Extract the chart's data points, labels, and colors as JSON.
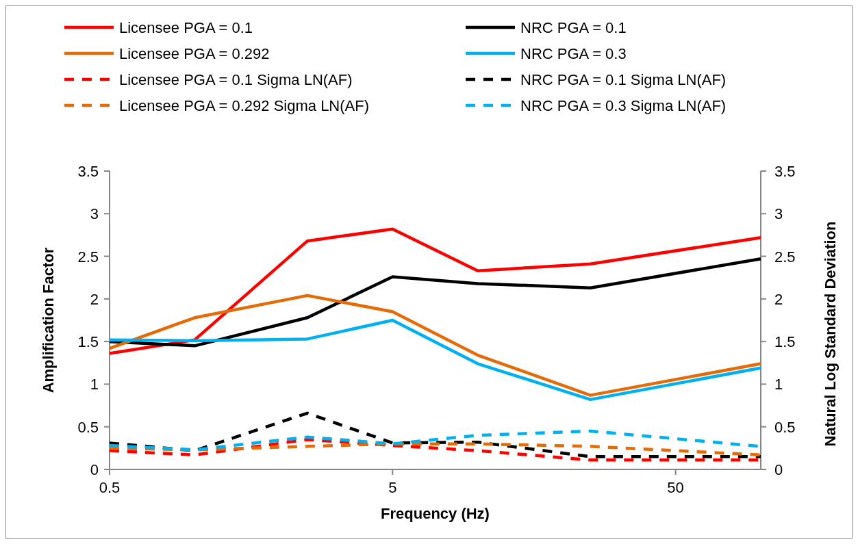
{
  "chart_data": {
    "type": "line",
    "xlabel": "Frequency (Hz)",
    "ylabel": "Amplification Factor",
    "y2label": "Natural Log Standard Deviation",
    "x": [
      0.5,
      1,
      2.5,
      5,
      10,
      25,
      100
    ],
    "log": "x",
    "xlim": [
      0.5,
      100
    ],
    "xticks": [
      0.5,
      5,
      50
    ],
    "ylim": [
      0,
      3.5
    ],
    "yticks": [
      0,
      0.5,
      1,
      1.5,
      2,
      2.5,
      3,
      3.5
    ],
    "y2lim": [
      0,
      3.5
    ],
    "y2ticks": [
      0,
      0.5,
      1,
      1.5,
      2,
      2.5,
      3,
      3.5
    ],
    "grid": false,
    "legend": "top",
    "marker": "none",
    "series": [
      {
        "name": "Licensee PGA = 0.1",
        "color": "#ff0000",
        "line_style": "solid",
        "values": [
          1.36,
          1.52,
          2.68,
          2.82,
          2.33,
          2.41,
          2.72
        ]
      },
      {
        "name": "NRC PGA = 0.1",
        "color": "#000000",
        "line_style": "solid",
        "values": [
          1.5,
          1.45,
          1.78,
          2.26,
          2.18,
          2.13,
          2.47
        ]
      },
      {
        "name": "Licensee PGA = 0.292",
        "color": "#e36c09",
        "line_style": "solid",
        "values": [
          1.42,
          1.78,
          2.04,
          1.85,
          1.34,
          0.87,
          1.24
        ]
      },
      {
        "name": "NRC PGA = 0.3",
        "color": "#00b0f0",
        "line_style": "solid",
        "values": [
          1.52,
          1.51,
          1.53,
          1.75,
          1.24,
          0.82,
          1.19
        ]
      },
      {
        "name": "Licensee PGA = 0.1 Sigma LN(AF)",
        "color": "#ff0000",
        "line_style": "dashed",
        "values": [
          0.22,
          0.17,
          0.35,
          0.28,
          0.22,
          0.11,
          0.11
        ]
      },
      {
        "name": "NRC PGA = 0.1 Sigma LN(AF)",
        "color": "#000000",
        "line_style": "dashed",
        "values": [
          0.31,
          0.22,
          0.66,
          0.31,
          0.32,
          0.15,
          0.15
        ]
      },
      {
        "name": "Licensee PGA = 0.292 Sigma LN(AF)",
        "color": "#e36c09",
        "line_style": "dashed",
        "values": [
          0.25,
          0.23,
          0.27,
          0.3,
          0.3,
          0.27,
          0.17
        ]
      },
      {
        "name": "NRC PGA = 0.3 Sigma LN(AF)",
        "color": "#00b0f0",
        "line_style": "dashed",
        "values": [
          0.28,
          0.23,
          0.38,
          0.3,
          0.4,
          0.45,
          0.27
        ]
      }
    ]
  }
}
